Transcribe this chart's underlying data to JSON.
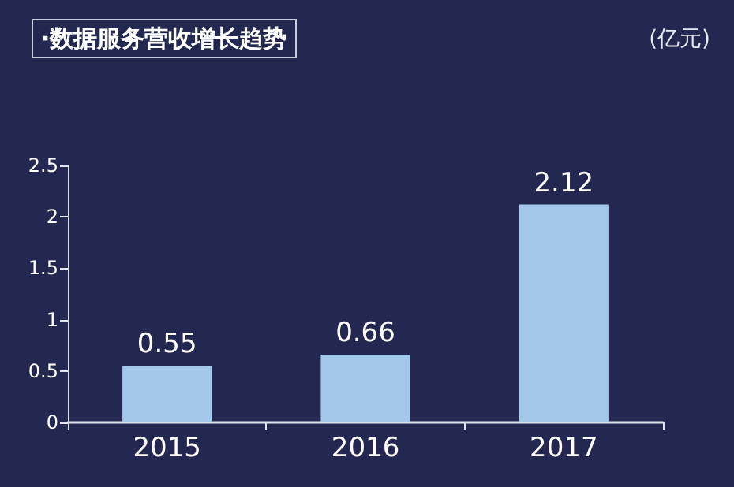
{
  "chart_data": {
    "type": "bar",
    "title": "·数据服务营收增长趋势",
    "annotations": [
      "(亿元)"
    ],
    "categories": [
      "2015",
      "2016",
      "2017"
    ],
    "values": [
      0.55,
      0.66,
      2.12
    ],
    "color": "#a3c8ea",
    "ylim": [
      0,
      2.5
    ],
    "yticks": [
      0,
      0.5,
      1,
      1.5,
      2,
      2.5
    ],
    "grid": false,
    "data_labels": true
  }
}
